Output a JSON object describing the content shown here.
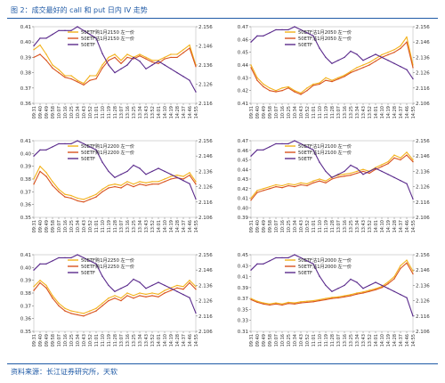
{
  "page": {
    "title": "图 2：成交最好的 call 和 put 日内 IV 走势",
    "source": "资料来源：长江证券研究所，天软"
  },
  "colors": {
    "call": "#f3b21b",
    "put": "#d9531e",
    "price": "#5a2a8c"
  },
  "time_labels": [
    "09:31",
    "09:40",
    "09:49",
    "09:58",
    "10:07",
    "10:16",
    "10:25",
    "10:34",
    "10:43",
    "10:52",
    "11:01",
    "11:10",
    "11:19",
    "11:28",
    "13:07",
    "13:16",
    "13:25",
    "13:34",
    "13:43",
    "13:52",
    "14:01",
    "14:10",
    "14:19",
    "14:28",
    "14:37",
    "14:46",
    "14:55"
  ],
  "chart_data": [
    {
      "type": "line",
      "legend": [
        "50ETF购1月2150",
        "50ETF沽1月2150",
        "50ETF"
      ],
      "legend_labels": [
        "50ETF购1月2150 左一价",
        "50ETF沽1月2150 左一价",
        "50ETF"
      ],
      "y_left": {
        "range": [
          0.36,
          0.41
        ],
        "ticks": [
          "0.41",
          "0.40",
          "0.39",
          "0.38",
          "0.37",
          "0.36"
        ]
      },
      "y_right": {
        "range": [
          2.116,
          2.156
        ],
        "ticks": [
          "2.156",
          "2.146",
          "2.136",
          "2.126",
          "2.116"
        ]
      },
      "series": [
        {
          "name": "50ETF购1月2150",
          "values": [
            0.395,
            0.398,
            0.392,
            0.385,
            0.382,
            0.378,
            0.378,
            0.375,
            0.373,
            0.378,
            0.378,
            0.385,
            0.39,
            0.392,
            0.388,
            0.392,
            0.39,
            0.392,
            0.39,
            0.388,
            0.388,
            0.39,
            0.392,
            0.392,
            0.395,
            0.398,
            0.385
          ]
        },
        {
          "name": "50ETF沽1月2150",
          "values": [
            0.39,
            0.392,
            0.388,
            0.383,
            0.38,
            0.377,
            0.376,
            0.374,
            0.372,
            0.375,
            0.376,
            0.383,
            0.388,
            0.39,
            0.386,
            0.39,
            0.389,
            0.391,
            0.389,
            0.387,
            0.386,
            0.389,
            0.39,
            0.39,
            0.393,
            0.396,
            0.384
          ]
        },
        {
          "name": "50ETF",
          "values": [
            2.146,
            2.15,
            2.15,
            2.152,
            2.154,
            2.154,
            2.154,
            2.156,
            2.154,
            2.152,
            2.15,
            2.142,
            2.136,
            2.132,
            2.134,
            2.136,
            2.14,
            2.138,
            2.134,
            2.136,
            2.138,
            2.136,
            2.134,
            2.132,
            2.13,
            2.128,
            2.122
          ]
        }
      ]
    },
    {
      "type": "line",
      "legend": [
        "50ETF沽1月2050",
        "50ETF沽1月2050",
        "50ETF"
      ],
      "legend_labels": [
        "50ETF沽1月2050 左一价",
        "50ETF沽1月2050 左一价",
        "50ETF"
      ],
      "y_left": {
        "range": [
          0.41,
          0.47
        ],
        "ticks": [
          "0.47",
          "0.46",
          "0.45",
          "0.44",
          "0.43",
          "0.42",
          "0.41"
        ]
      },
      "y_right": {
        "range": [
          2.106,
          2.156
        ],
        "ticks": [
          "2.156",
          "2.146",
          "2.136",
          "2.126",
          "2.116",
          "2.106"
        ]
      },
      "series": [
        {
          "name": "50ETF沽1月2050",
          "values": [
            0.44,
            0.43,
            0.425,
            0.422,
            0.42,
            0.422,
            0.423,
            0.42,
            0.418,
            0.422,
            0.425,
            0.426,
            0.43,
            0.428,
            0.43,
            0.432,
            0.435,
            0.438,
            0.44,
            0.442,
            0.445,
            0.448,
            0.45,
            0.452,
            0.455,
            0.462,
            0.44
          ]
        },
        {
          "name": "50ETF沽1月2050",
          "values": [
            0.438,
            0.428,
            0.423,
            0.42,
            0.419,
            0.42,
            0.422,
            0.419,
            0.417,
            0.42,
            0.424,
            0.425,
            0.428,
            0.427,
            0.429,
            0.431,
            0.434,
            0.436,
            0.438,
            0.44,
            0.443,
            0.446,
            0.448,
            0.45,
            0.453,
            0.458,
            0.438
          ]
        },
        {
          "name": "50ETF",
          "values": [
            2.146,
            2.15,
            2.15,
            2.152,
            2.154,
            2.154,
            2.154,
            2.156,
            2.154,
            2.152,
            2.15,
            2.142,
            2.136,
            2.132,
            2.134,
            2.136,
            2.14,
            2.138,
            2.134,
            2.136,
            2.138,
            2.136,
            2.134,
            2.132,
            2.13,
            2.128,
            2.122
          ]
        }
      ]
    },
    {
      "type": "line",
      "legend": [
        "50ETF购1月2200",
        "50ETF购1月2200",
        "50ETF"
      ],
      "legend_labels": [
        "50ETF购1月2200 左一价",
        "50ETF购1月2200 左一价",
        "50ETF"
      ],
      "y_left": {
        "range": [
          0.35,
          0.41
        ],
        "ticks": [
          "0.41",
          "0.40",
          "0.39",
          "0.38",
          "0.37",
          "0.36",
          "0.35"
        ]
      },
      "y_right": {
        "range": [
          2.106,
          2.156
        ],
        "ticks": [
          "2.156",
          "2.146",
          "2.136",
          "2.126",
          "2.116",
          "2.106"
        ]
      },
      "series": [
        {
          "name": "50ETF购1月2200",
          "values": [
            0.38,
            0.39,
            0.385,
            0.378,
            0.372,
            0.368,
            0.367,
            0.365,
            0.364,
            0.366,
            0.368,
            0.372,
            0.375,
            0.376,
            0.375,
            0.378,
            0.376,
            0.378,
            0.377,
            0.378,
            0.378,
            0.38,
            0.382,
            0.383,
            0.382,
            0.385,
            0.378
          ]
        },
        {
          "name": "50ETF购1月2200",
          "values": [
            0.376,
            0.386,
            0.382,
            0.375,
            0.37,
            0.366,
            0.365,
            0.363,
            0.362,
            0.364,
            0.366,
            0.37,
            0.373,
            0.374,
            0.373,
            0.376,
            0.374,
            0.376,
            0.375,
            0.376,
            0.376,
            0.378,
            0.38,
            0.381,
            0.38,
            0.383,
            0.376
          ]
        },
        {
          "name": "50ETF",
          "values": [
            2.146,
            2.15,
            2.15,
            2.152,
            2.154,
            2.154,
            2.154,
            2.156,
            2.154,
            2.152,
            2.15,
            2.142,
            2.136,
            2.132,
            2.134,
            2.136,
            2.14,
            2.138,
            2.134,
            2.136,
            2.138,
            2.136,
            2.134,
            2.132,
            2.13,
            2.128,
            2.118
          ]
        }
      ]
    },
    {
      "type": "line",
      "legend": [
        "50ETF沽1月2100",
        "50ETF沽1月2100",
        "50ETF"
      ],
      "legend_labels": [
        "50ETF沽1月2100 左一价",
        "50ETF沽1月2100 左一价",
        "50ETF"
      ],
      "y_left": {
        "range": [
          0.39,
          0.47
        ],
        "ticks": [
          "0.47",
          "0.46",
          "0.45",
          "0.44",
          "0.43",
          "0.42",
          "0.41",
          "0.40",
          "0.39"
        ]
      },
      "y_right": {
        "range": [
          2.106,
          2.156
        ],
        "ticks": [
          "2.156",
          "2.146",
          "2.136",
          "2.126",
          "2.116",
          "2.106"
        ]
      },
      "series": [
        {
          "name": "50ETF沽1月2100",
          "values": [
            0.41,
            0.418,
            0.42,
            0.422,
            0.424,
            0.423,
            0.425,
            0.424,
            0.426,
            0.425,
            0.428,
            0.43,
            0.428,
            0.432,
            0.434,
            0.435,
            0.436,
            0.438,
            0.44,
            0.438,
            0.442,
            0.445,
            0.448,
            0.455,
            0.452,
            0.458,
            0.45
          ]
        },
        {
          "name": "50ETF沽1月2100",
          "values": [
            0.408,
            0.416,
            0.418,
            0.42,
            0.422,
            0.421,
            0.423,
            0.422,
            0.424,
            0.423,
            0.426,
            0.428,
            0.426,
            0.43,
            0.432,
            0.433,
            0.434,
            0.436,
            0.438,
            0.436,
            0.44,
            0.443,
            0.446,
            0.452,
            0.45,
            0.455,
            0.448
          ]
        },
        {
          "name": "50ETF",
          "values": [
            2.146,
            2.15,
            2.15,
            2.152,
            2.154,
            2.154,
            2.154,
            2.156,
            2.154,
            2.152,
            2.15,
            2.142,
            2.136,
            2.132,
            2.134,
            2.136,
            2.14,
            2.138,
            2.134,
            2.136,
            2.138,
            2.136,
            2.134,
            2.132,
            2.13,
            2.128,
            2.118
          ]
        }
      ]
    },
    {
      "type": "line",
      "legend": [
        "50ETF购1月2250",
        "50ETF购1月2250",
        "50ETF"
      ],
      "legend_labels": [
        "50ETF购1月2250 左一价",
        "50ETF购1月2250 左一价",
        "50ETF"
      ],
      "y_left": {
        "range": [
          0.35,
          0.41
        ],
        "ticks": [
          "0.41",
          "0.40",
          "0.39",
          "0.38",
          "0.37",
          "0.36",
          "0.35"
        ]
      },
      "y_right": {
        "range": [
          2.106,
          2.156
        ],
        "ticks": [
          "2.156",
          "2.146",
          "2.136",
          "2.126",
          "2.116",
          "2.106"
        ]
      },
      "series": [
        {
          "name": "50ETF购1月2250",
          "values": [
            0.385,
            0.39,
            0.386,
            0.378,
            0.372,
            0.368,
            0.366,
            0.365,
            0.364,
            0.366,
            0.368,
            0.372,
            0.376,
            0.378,
            0.376,
            0.38,
            0.378,
            0.38,
            0.379,
            0.38,
            0.379,
            0.382,
            0.384,
            0.386,
            0.385,
            0.39,
            0.385
          ]
        },
        {
          "name": "50ETF购1月2250",
          "values": [
            0.382,
            0.388,
            0.384,
            0.376,
            0.37,
            0.366,
            0.364,
            0.363,
            0.362,
            0.364,
            0.366,
            0.37,
            0.374,
            0.376,
            0.374,
            0.378,
            0.376,
            0.378,
            0.377,
            0.378,
            0.377,
            0.38,
            0.382,
            0.384,
            0.383,
            0.388,
            0.383
          ]
        },
        {
          "name": "50ETF",
          "values": [
            2.146,
            2.15,
            2.15,
            2.152,
            2.154,
            2.154,
            2.154,
            2.156,
            2.154,
            2.152,
            2.15,
            2.142,
            2.136,
            2.132,
            2.134,
            2.136,
            2.14,
            2.138,
            2.134,
            2.136,
            2.138,
            2.136,
            2.134,
            2.132,
            2.13,
            2.128,
            2.118
          ]
        }
      ]
    },
    {
      "type": "line",
      "legend": [
        "50ETF沽1月2000",
        "50ETF沽1月2000",
        "50ETF"
      ],
      "legend_labels": [
        "50ETF沽1月2000 左一价",
        "50ETF沽1月2000 左一价",
        "50ETF"
      ],
      "y_left": {
        "range": [
          0.31,
          0.45
        ],
        "ticks": [
          "0.45",
          "0.43",
          "0.41",
          "0.39",
          "0.37",
          "0.35",
          "0.33",
          "0.31"
        ]
      },
      "y_right": {
        "range": [
          2.106,
          2.156
        ],
        "ticks": [
          "2.156",
          "2.146",
          "2.136",
          "2.126",
          "2.116",
          "2.106"
        ]
      },
      "series": [
        {
          "name": "50ETF沽1月2000",
          "values": [
            0.37,
            0.365,
            0.362,
            0.36,
            0.362,
            0.36,
            0.363,
            0.362,
            0.364,
            0.365,
            0.366,
            0.368,
            0.37,
            0.372,
            0.373,
            0.375,
            0.377,
            0.38,
            0.382,
            0.385,
            0.388,
            0.392,
            0.4,
            0.41,
            0.43,
            0.44,
            0.42
          ]
        },
        {
          "name": "50ETF沽1月2000",
          "values": [
            0.368,
            0.363,
            0.36,
            0.358,
            0.36,
            0.358,
            0.361,
            0.36,
            0.362,
            0.363,
            0.364,
            0.366,
            0.368,
            0.37,
            0.371,
            0.373,
            0.375,
            0.378,
            0.38,
            0.383,
            0.386,
            0.39,
            0.397,
            0.406,
            0.425,
            0.435,
            0.415
          ]
        },
        {
          "name": "50ETF",
          "values": [
            2.146,
            2.15,
            2.15,
            2.152,
            2.154,
            2.154,
            2.154,
            2.156,
            2.154,
            2.152,
            2.15,
            2.142,
            2.136,
            2.132,
            2.134,
            2.136,
            2.14,
            2.138,
            2.134,
            2.136,
            2.138,
            2.136,
            2.134,
            2.132,
            2.13,
            2.128,
            2.116
          ]
        }
      ]
    }
  ]
}
